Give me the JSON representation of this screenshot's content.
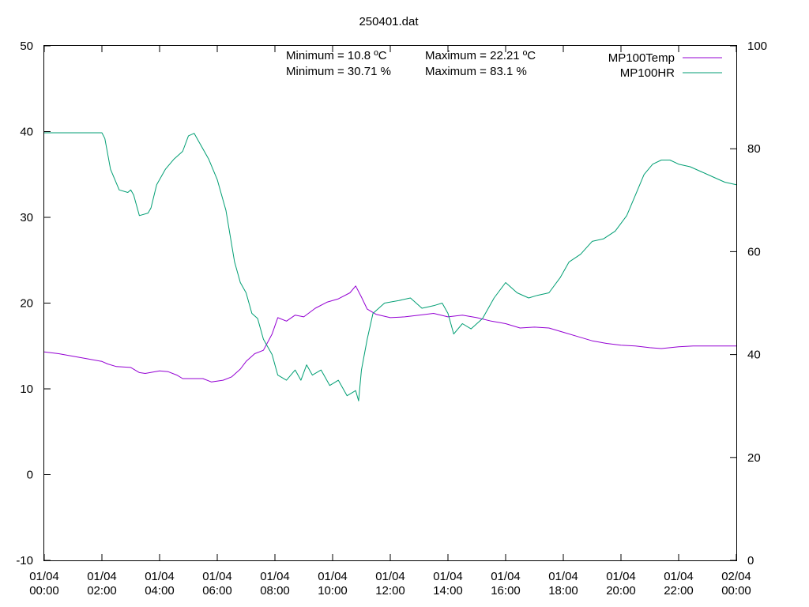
{
  "chart_data": {
    "type": "line",
    "title": "250401.dat",
    "annotations": {
      "temp_min": "Minimum = 10.8 ºC",
      "temp_max": "Maximum = 22.21 ºC",
      "hr_min": "Minimum = 30.71 %",
      "hr_max": "Maximum = 83.1 %"
    },
    "x_unit": "hours since 01/04 00:00",
    "xlim": [
      0,
      24
    ],
    "x_ticks": [
      {
        "x": 0,
        "date": "01/04",
        "time": "00:00"
      },
      {
        "x": 2,
        "date": "01/04",
        "time": "02:00"
      },
      {
        "x": 4,
        "date": "01/04",
        "time": "04:00"
      },
      {
        "x": 6,
        "date": "01/04",
        "time": "06:00"
      },
      {
        "x": 8,
        "date": "01/04",
        "time": "08:00"
      },
      {
        "x": 10,
        "date": "01/04",
        "time": "10:00"
      },
      {
        "x": 12,
        "date": "01/04",
        "time": "12:00"
      },
      {
        "x": 14,
        "date": "01/04",
        "time": "14:00"
      },
      {
        "x": 16,
        "date": "01/04",
        "time": "16:00"
      },
      {
        "x": 18,
        "date": "01/04",
        "time": "18:00"
      },
      {
        "x": 20,
        "date": "01/04",
        "time": "20:00"
      },
      {
        "x": 22,
        "date": "01/04",
        "time": "22:00"
      },
      {
        "x": 24,
        "date": "02/04",
        "time": "00:00"
      }
    ],
    "y_left": {
      "range": [
        -10,
        50
      ],
      "ticks": [
        "-10",
        "0",
        "10",
        "20",
        "30",
        "40",
        "50"
      ]
    },
    "y_right": {
      "range": [
        0,
        100
      ],
      "ticks": [
        "0",
        "20",
        "40",
        "60",
        "80",
        "100"
      ]
    },
    "legend_position": "top-right",
    "grid": false,
    "series": [
      {
        "name": "MP100Temp",
        "axis": "left",
        "color": "#9400d3",
        "points": [
          [
            0,
            14.3
          ],
          [
            0.5,
            14.1
          ],
          [
            1,
            13.8
          ],
          [
            1.5,
            13.5
          ],
          [
            2,
            13.2
          ],
          [
            2.2,
            12.9
          ],
          [
            2.5,
            12.6
          ],
          [
            3,
            12.5
          ],
          [
            3.3,
            11.9
          ],
          [
            3.5,
            11.8
          ],
          [
            4,
            12.1
          ],
          [
            4.3,
            12.0
          ],
          [
            4.6,
            11.6
          ],
          [
            4.8,
            11.2
          ],
          [
            5,
            11.2
          ],
          [
            5.5,
            11.2
          ],
          [
            5.8,
            10.8
          ],
          [
            6.2,
            11.0
          ],
          [
            6.5,
            11.4
          ],
          [
            6.8,
            12.3
          ],
          [
            7,
            13.2
          ],
          [
            7.3,
            14.1
          ],
          [
            7.6,
            14.5
          ],
          [
            7.9,
            16.4
          ],
          [
            8.1,
            18.3
          ],
          [
            8.4,
            17.9
          ],
          [
            8.7,
            18.6
          ],
          [
            9,
            18.4
          ],
          [
            9.4,
            19.4
          ],
          [
            9.8,
            20.1
          ],
          [
            10.2,
            20.5
          ],
          [
            10.6,
            21.2
          ],
          [
            10.8,
            22.0
          ],
          [
            11.0,
            20.7
          ],
          [
            11.2,
            19.3
          ],
          [
            11.5,
            18.7
          ],
          [
            12,
            18.3
          ],
          [
            12.5,
            18.4
          ],
          [
            13,
            18.6
          ],
          [
            13.5,
            18.8
          ],
          [
            14,
            18.4
          ],
          [
            14.5,
            18.6
          ],
          [
            15,
            18.3
          ],
          [
            15.5,
            17.9
          ],
          [
            16,
            17.6
          ],
          [
            16.5,
            17.1
          ],
          [
            17,
            17.2
          ],
          [
            17.5,
            17.1
          ],
          [
            18,
            16.6
          ],
          [
            18.5,
            16.1
          ],
          [
            19,
            15.6
          ],
          [
            19.5,
            15.3
          ],
          [
            20,
            15.1
          ],
          [
            20.5,
            15.0
          ],
          [
            21,
            14.8
          ],
          [
            21.4,
            14.7
          ],
          [
            22,
            14.9
          ],
          [
            22.5,
            15.0
          ],
          [
            23,
            15.0
          ],
          [
            23.5,
            15.0
          ],
          [
            24,
            15.0
          ]
        ]
      },
      {
        "name": "MP100HR",
        "axis": "right",
        "color": "#009e73",
        "points": [
          [
            0,
            83.1
          ],
          [
            1,
            83.1
          ],
          [
            2,
            83.1
          ],
          [
            2.1,
            82.0
          ],
          [
            2.3,
            76.0
          ],
          [
            2.6,
            72.0
          ],
          [
            2.9,
            71.5
          ],
          [
            3.0,
            72.0
          ],
          [
            3.1,
            71.0
          ],
          [
            3.3,
            67.0
          ],
          [
            3.6,
            67.5
          ],
          [
            3.7,
            68.5
          ],
          [
            3.9,
            73.0
          ],
          [
            4.2,
            76.0
          ],
          [
            4.5,
            78.0
          ],
          [
            4.8,
            79.5
          ],
          [
            5,
            82.5
          ],
          [
            5.2,
            83.0
          ],
          [
            5.4,
            81.0
          ],
          [
            5.7,
            78.0
          ],
          [
            6.0,
            74.0
          ],
          [
            6.3,
            68.0
          ],
          [
            6.6,
            58.0
          ],
          [
            6.8,
            54.0
          ],
          [
            7.0,
            52.0
          ],
          [
            7.2,
            48.0
          ],
          [
            7.4,
            47.0
          ],
          [
            7.6,
            43.0
          ],
          [
            7.9,
            40.0
          ],
          [
            8.1,
            36.0
          ],
          [
            8.4,
            35.0
          ],
          [
            8.7,
            37.0
          ],
          [
            8.9,
            35.0
          ],
          [
            9.1,
            38.0
          ],
          [
            9.3,
            36.0
          ],
          [
            9.6,
            37.0
          ],
          [
            9.9,
            34.0
          ],
          [
            10.2,
            35.0
          ],
          [
            10.5,
            32.0
          ],
          [
            10.8,
            33.0
          ],
          [
            10.9,
            31.0
          ],
          [
            11.0,
            37.0
          ],
          [
            11.2,
            43.0
          ],
          [
            11.4,
            48.0
          ],
          [
            11.8,
            50.0
          ],
          [
            12.3,
            50.5
          ],
          [
            12.7,
            51.0
          ],
          [
            13.1,
            49.0
          ],
          [
            13.5,
            49.5
          ],
          [
            13.8,
            50.0
          ],
          [
            14.0,
            48.0
          ],
          [
            14.2,
            44.0
          ],
          [
            14.5,
            46.0
          ],
          [
            14.8,
            45.0
          ],
          [
            15.2,
            47.0
          ],
          [
            15.6,
            51.0
          ],
          [
            16.0,
            54.0
          ],
          [
            16.4,
            52.0
          ],
          [
            16.8,
            51.0
          ],
          [
            17.1,
            51.5
          ],
          [
            17.5,
            52.0
          ],
          [
            17.9,
            55.0
          ],
          [
            18.2,
            58.0
          ],
          [
            18.6,
            59.5
          ],
          [
            19.0,
            62.0
          ],
          [
            19.4,
            62.5
          ],
          [
            19.8,
            64.0
          ],
          [
            20.2,
            67.0
          ],
          [
            20.5,
            71.0
          ],
          [
            20.8,
            75.0
          ],
          [
            21.1,
            77.0
          ],
          [
            21.4,
            77.8
          ],
          [
            21.7,
            77.8
          ],
          [
            22.0,
            77.0
          ],
          [
            22.4,
            76.5
          ],
          [
            22.8,
            75.5
          ],
          [
            23.2,
            74.5
          ],
          [
            23.6,
            73.5
          ],
          [
            24.0,
            73.0
          ]
        ]
      }
    ]
  }
}
